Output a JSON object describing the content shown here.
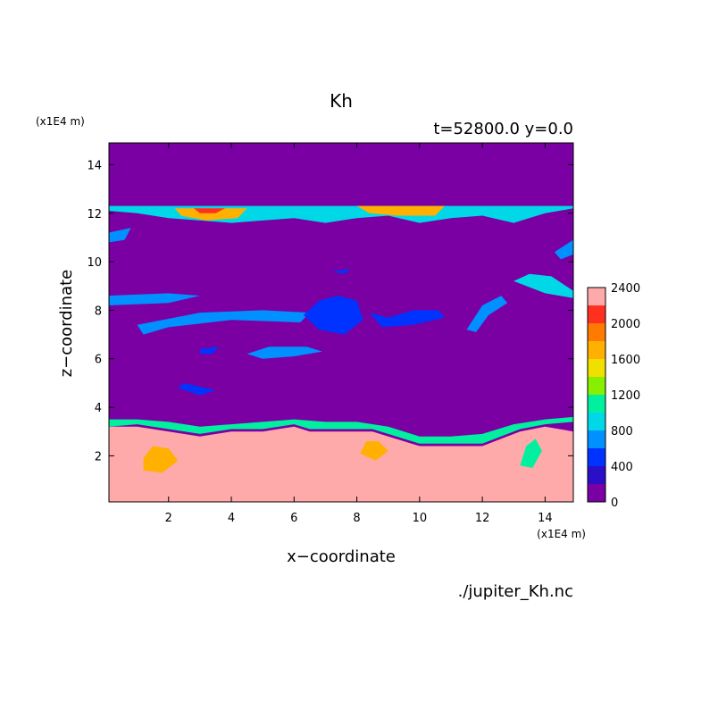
{
  "chart_data": {
    "type": "heatmap",
    "title": "Kh",
    "subtitle": "t=52800.0 y=0.0",
    "xlabel": "x−coordinate",
    "ylabel": "z−coordinate",
    "x_unit": "(x1E4 m)",
    "y_unit": "(x1E4 m)",
    "source_file": "./jupiter_Kh.nc",
    "xlim": [
      0.1,
      14.9
    ],
    "ylim": [
      0.1,
      14.9
    ],
    "xticks": [
      2,
      4,
      6,
      8,
      10,
      12,
      14
    ],
    "yticks": [
      2,
      4,
      6,
      8,
      10,
      12,
      14
    ],
    "grid": false,
    "colorbar": {
      "ticks": [
        0,
        400,
        800,
        1200,
        1600,
        2000,
        2400
      ],
      "levels": [
        0,
        200,
        400,
        600,
        800,
        1000,
        1200,
        1400,
        1600,
        1800,
        2000,
        2200,
        2400
      ],
      "colors": [
        "#7a00a3",
        "#2b0fc8",
        "#0033ff",
        "#0090ff",
        "#00d8e8",
        "#00f0a0",
        "#86f000",
        "#f0e000",
        "#ffb000",
        "#ff7a00",
        "#ff3020",
        "#ffaaaa"
      ]
    },
    "background_value": 0,
    "regions": [
      {
        "name": "lower-saturated-layer",
        "value": 2400,
        "points": [
          [
            0.1,
            0.1
          ],
          [
            14.9,
            0.1
          ],
          [
            14.9,
            3.0
          ],
          [
            14.0,
            3.2
          ],
          [
            13.2,
            3.0
          ],
          [
            12.0,
            2.4
          ],
          [
            11.0,
            2.4
          ],
          [
            10.0,
            2.4
          ],
          [
            9.0,
            2.8
          ],
          [
            8.5,
            3.0
          ],
          [
            7.5,
            3.0
          ],
          [
            6.5,
            3.0
          ],
          [
            6.0,
            3.2
          ],
          [
            5.0,
            3.0
          ],
          [
            4.0,
            3.0
          ],
          [
            3.0,
            2.8
          ],
          [
            2.0,
            3.0
          ],
          [
            1.0,
            3.2
          ],
          [
            0.1,
            3.2
          ]
        ]
      },
      {
        "name": "lower-layer-edge",
        "value": 1000,
        "points": [
          [
            0.1,
            3.2
          ],
          [
            1.0,
            3.3
          ],
          [
            2.0,
            3.1
          ],
          [
            3.0,
            2.9
          ],
          [
            4.0,
            3.1
          ],
          [
            5.0,
            3.1
          ],
          [
            6.0,
            3.3
          ],
          [
            6.5,
            3.1
          ],
          [
            7.5,
            3.1
          ],
          [
            8.5,
            3.1
          ],
          [
            9.0,
            2.9
          ],
          [
            10.0,
            2.5
          ],
          [
            11.0,
            2.5
          ],
          [
            12.0,
            2.5
          ],
          [
            13.2,
            3.1
          ],
          [
            14.0,
            3.3
          ],
          [
            14.9,
            3.4
          ],
          [
            14.9,
            3.6
          ],
          [
            14.0,
            3.5
          ],
          [
            13.0,
            3.3
          ],
          [
            12.0,
            2.9
          ],
          [
            11.0,
            2.8
          ],
          [
            10.0,
            2.8
          ],
          [
            9.0,
            3.2
          ],
          [
            8.0,
            3.4
          ],
          [
            7.0,
            3.4
          ],
          [
            6.0,
            3.5
          ],
          [
            5.0,
            3.4
          ],
          [
            4.0,
            3.3
          ],
          [
            3.0,
            3.2
          ],
          [
            2.0,
            3.4
          ],
          [
            1.0,
            3.5
          ],
          [
            0.1,
            3.5
          ]
        ]
      },
      {
        "name": "eddy-1",
        "value": 2200,
        "points": [
          [
            0.5,
            1.0
          ],
          [
            1.2,
            0.9
          ],
          [
            2.2,
            1.2
          ],
          [
            2.6,
            1.8
          ],
          [
            2.3,
            2.5
          ],
          [
            1.6,
            2.7
          ],
          [
            0.9,
            2.4
          ],
          [
            0.6,
            1.7
          ]
        ]
      },
      {
        "name": "eddy-1-core",
        "value": 1700,
        "points": [
          [
            1.2,
            1.4
          ],
          [
            1.8,
            1.3
          ],
          [
            2.3,
            1.8
          ],
          [
            2.0,
            2.3
          ],
          [
            1.5,
            2.4
          ],
          [
            1.2,
            1.9
          ]
        ]
      },
      {
        "name": "eddy-2",
        "value": 2200,
        "points": [
          [
            3.0,
            1.5
          ],
          [
            4.2,
            1.8
          ],
          [
            5.6,
            1.6
          ],
          [
            6.2,
            2.3
          ],
          [
            5.6,
            2.7
          ],
          [
            4.5,
            2.8
          ],
          [
            3.4,
            2.6
          ],
          [
            2.9,
            2.1
          ]
        ]
      },
      {
        "name": "eddy-3",
        "value": 2200,
        "points": [
          [
            7.7,
            2.0
          ],
          [
            8.3,
            1.5
          ],
          [
            9.0,
            1.6
          ],
          [
            9.3,
            2.2
          ],
          [
            8.9,
            2.8
          ],
          [
            8.2,
            2.9
          ],
          [
            7.8,
            2.6
          ]
        ]
      },
      {
        "name": "eddy-3-core",
        "value": 1700,
        "points": [
          [
            8.1,
            2.1
          ],
          [
            8.6,
            1.8
          ],
          [
            9.0,
            2.2
          ],
          [
            8.7,
            2.6
          ],
          [
            8.3,
            2.6
          ]
        ]
      },
      {
        "name": "eddy-4",
        "value": 2200,
        "points": [
          [
            9.2,
            0.8
          ],
          [
            9.6,
            0.9
          ],
          [
            10.0,
            1.8
          ],
          [
            10.8,
            2.2
          ],
          [
            11.8,
            2.4
          ],
          [
            12.0,
            2.0
          ],
          [
            11.2,
            1.8
          ],
          [
            10.3,
            1.3
          ],
          [
            9.8,
            0.8
          ]
        ]
      },
      {
        "name": "eddy-5",
        "value": 2200,
        "points": [
          [
            12.8,
            1.2
          ],
          [
            13.3,
            0.9
          ],
          [
            13.8,
            1.6
          ],
          [
            14.2,
            2.4
          ],
          [
            14.0,
            3.0
          ],
          [
            13.4,
            2.7
          ],
          [
            13.0,
            2.0
          ]
        ]
      },
      {
        "name": "eddy-5-core",
        "value": 1100,
        "points": [
          [
            13.2,
            1.6
          ],
          [
            13.6,
            1.5
          ],
          [
            13.9,
            2.2
          ],
          [
            13.7,
            2.7
          ],
          [
            13.4,
            2.4
          ]
        ]
      },
      {
        "name": "upper-band",
        "value": 800,
        "points": [
          [
            0.1,
            12.3
          ],
          [
            14.9,
            12.3
          ],
          [
            14.9,
            12.2
          ],
          [
            14.0,
            12.0
          ],
          [
            13.0,
            11.6
          ],
          [
            12.0,
            11.9
          ],
          [
            11.0,
            11.8
          ],
          [
            10.0,
            11.6
          ],
          [
            9.0,
            11.9
          ],
          [
            8.0,
            11.8
          ],
          [
            7.0,
            11.6
          ],
          [
            6.0,
            11.8
          ],
          [
            5.0,
            11.7
          ],
          [
            4.0,
            11.6
          ],
          [
            3.0,
            11.7
          ],
          [
            2.0,
            11.8
          ],
          [
            1.0,
            12.0
          ],
          [
            0.1,
            12.1
          ]
        ]
      },
      {
        "name": "upper-band-hot-1",
        "value": 1600,
        "points": [
          [
            2.2,
            12.2
          ],
          [
            4.5,
            12.2
          ],
          [
            4.2,
            11.8
          ],
          [
            3.2,
            11.7
          ],
          [
            2.4,
            11.9
          ]
        ]
      },
      {
        "name": "upper-band-hot-2",
        "value": 1600,
        "points": [
          [
            8.0,
            12.3
          ],
          [
            10.8,
            12.3
          ],
          [
            10.5,
            11.9
          ],
          [
            9.3,
            11.9
          ],
          [
            8.4,
            12.0
          ]
        ]
      },
      {
        "name": "upper-band-red",
        "value": 2000,
        "points": [
          [
            2.8,
            12.2
          ],
          [
            3.8,
            12.2
          ],
          [
            3.5,
            12.0
          ],
          [
            3.0,
            12.0
          ]
        ]
      },
      {
        "name": "blob-1",
        "value": 600,
        "points": [
          [
            0.1,
            8.6
          ],
          [
            2.0,
            8.7
          ],
          [
            3.0,
            8.6
          ],
          [
            2.0,
            8.3
          ],
          [
            0.1,
            8.2
          ]
        ]
      },
      {
        "name": "blob-2",
        "value": 600,
        "points": [
          [
            1.0,
            7.4
          ],
          [
            3.0,
            7.9
          ],
          [
            5.0,
            8.0
          ],
          [
            6.5,
            7.9
          ],
          [
            6.2,
            7.5
          ],
          [
            4.0,
            7.6
          ],
          [
            2.0,
            7.3
          ],
          [
            1.2,
            7.0
          ]
        ]
      },
      {
        "name": "blob-3",
        "value": 400,
        "points": [
          [
            6.3,
            7.8
          ],
          [
            6.8,
            8.4
          ],
          [
            7.4,
            8.6
          ],
          [
            8.0,
            8.4
          ],
          [
            8.2,
            7.6
          ],
          [
            7.6,
            7.0
          ],
          [
            6.8,
            7.2
          ]
        ]
      },
      {
        "name": "blob-4",
        "value": 400,
        "points": [
          [
            8.4,
            7.9
          ],
          [
            9.0,
            7.7
          ],
          [
            9.8,
            8.0
          ],
          [
            10.6,
            8.0
          ],
          [
            10.8,
            7.7
          ],
          [
            9.8,
            7.4
          ],
          [
            8.8,
            7.3
          ]
        ]
      },
      {
        "name": "blob-5",
        "value": 600,
        "points": [
          [
            11.5,
            7.2
          ],
          [
            12.0,
            8.2
          ],
          [
            12.6,
            8.6
          ],
          [
            12.8,
            8.3
          ],
          [
            12.2,
            7.8
          ],
          [
            11.8,
            7.1
          ]
        ]
      },
      {
        "name": "blob-6",
        "value": 800,
        "points": [
          [
            13.0,
            9.2
          ],
          [
            14.0,
            8.7
          ],
          [
            14.9,
            8.5
          ],
          [
            14.9,
            8.8
          ],
          [
            14.2,
            9.4
          ],
          [
            13.5,
            9.5
          ]
        ]
      },
      {
        "name": "blob-7",
        "value": 600,
        "points": [
          [
            4.5,
            6.2
          ],
          [
            5.2,
            6.5
          ],
          [
            6.4,
            6.5
          ],
          [
            6.9,
            6.3
          ],
          [
            6.0,
            6.1
          ],
          [
            5.0,
            6.0
          ]
        ]
      },
      {
        "name": "blob-8",
        "value": 600,
        "points": [
          [
            0.1,
            11.2
          ],
          [
            0.8,
            11.4
          ],
          [
            0.6,
            10.9
          ],
          [
            0.1,
            10.8
          ]
        ]
      },
      {
        "name": "blob-9",
        "value": 600,
        "points": [
          [
            14.3,
            10.4
          ],
          [
            14.9,
            10.9
          ],
          [
            14.9,
            10.3
          ],
          [
            14.5,
            10.1
          ]
        ]
      },
      {
        "name": "blob-10",
        "value": 400,
        "points": [
          [
            3.0,
            6.4
          ],
          [
            3.6,
            6.5
          ],
          [
            3.4,
            6.2
          ],
          [
            3.0,
            6.2
          ]
        ]
      },
      {
        "name": "blob-11",
        "value": 400,
        "points": [
          [
            7.2,
            9.6
          ],
          [
            7.8,
            9.7
          ],
          [
            7.6,
            9.5
          ]
        ]
      },
      {
        "name": "blob-12",
        "value": 400,
        "points": [
          [
            2.5,
            5.0
          ],
          [
            3.5,
            4.7
          ],
          [
            3.0,
            4.5
          ],
          [
            2.3,
            4.8
          ]
        ]
      }
    ]
  }
}
